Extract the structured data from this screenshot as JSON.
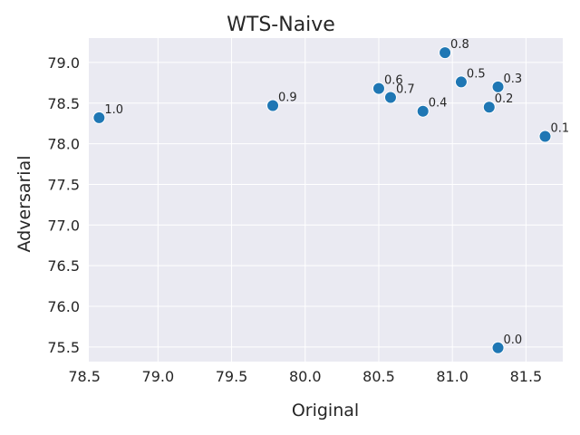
{
  "chart_data": {
    "type": "scatter",
    "title": "WTS-Naive",
    "xlabel": "Original",
    "ylabel": "Adversarial",
    "xlim": [
      78.53,
      81.75
    ],
    "ylim": [
      75.32,
      79.3
    ],
    "xticks": [
      "78.5",
      "79.0",
      "79.5",
      "80.0",
      "80.5",
      "81.0",
      "81.5"
    ],
    "yticks": [
      "75.5",
      "76.0",
      "76.5",
      "77.0",
      "77.5",
      "78.0",
      "78.5",
      "79.0"
    ],
    "grid": true,
    "point_color": "#1f77b4",
    "background_color": "#eaeaf2",
    "points": [
      {
        "label": "0.0",
        "x": 81.31,
        "y": 75.49
      },
      {
        "label": "0.1",
        "x": 81.63,
        "y": 78.09
      },
      {
        "label": "0.2",
        "x": 81.25,
        "y": 78.45
      },
      {
        "label": "0.3",
        "x": 81.31,
        "y": 78.7
      },
      {
        "label": "0.4",
        "x": 80.8,
        "y": 78.4
      },
      {
        "label": "0.5",
        "x": 81.06,
        "y": 78.76
      },
      {
        "label": "0.6",
        "x": 80.5,
        "y": 78.68
      },
      {
        "label": "0.7",
        "x": 80.58,
        "y": 78.57
      },
      {
        "label": "0.8",
        "x": 80.95,
        "y": 79.12
      },
      {
        "label": "0.9",
        "x": 79.78,
        "y": 78.47
      },
      {
        "label": "1.0",
        "x": 78.6,
        "y": 78.32
      }
    ]
  }
}
